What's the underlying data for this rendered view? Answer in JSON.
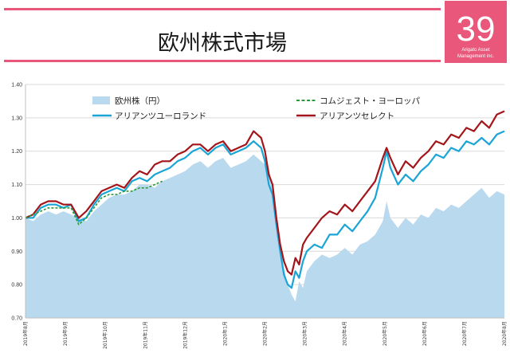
{
  "header": {
    "title": "欧州株式市場",
    "logo_number": "39",
    "logo_line1": "Arigato Asset",
    "logo_line2": "Management inc.",
    "accent_color": "#e9577a"
  },
  "chart_data": {
    "type": "line",
    "ylim": [
      0.7,
      1.4
    ],
    "yticks": [
      "0.70",
      "0.80",
      "0.90",
      "1.00",
      "1.10",
      "1.20",
      "1.30",
      "1.40"
    ],
    "x_tick_labels": [
      "2019年8月",
      "2019年9月",
      "2019年10月",
      "2019年11月",
      "2019年12月",
      "2020年1月",
      "2020年2月",
      "2020年3月",
      "2020年4月",
      "2020年5月",
      "2020年6月",
      "2020年7月",
      "2020年8月"
    ],
    "legend": {
      "area": "欧州株（円）",
      "dashed": "コムジェスト・ヨーロッパ",
      "blue": "アリアンツユーロランド",
      "red": "アリアンツセレクト"
    },
    "colors": {
      "area": "#b9d9ef",
      "dashed": "#2e9b3a",
      "blue": "#1aa5d6",
      "red": "#a4151a",
      "grid": "#d9d9d9"
    },
    "series": [
      {
        "name": "欧州株（円）",
        "style": "area",
        "points": [
          [
            0,
            1.0
          ],
          [
            2,
            0.99
          ],
          [
            4,
            1.01
          ],
          [
            6,
            1.02
          ],
          [
            8,
            1.01
          ],
          [
            10,
            1.02
          ],
          [
            12,
            1.01
          ],
          [
            14,
            1.0
          ],
          [
            16,
            0.99
          ],
          [
            18,
            1.02
          ],
          [
            20,
            1.04
          ],
          [
            22,
            1.06
          ],
          [
            24,
            1.07
          ],
          [
            26,
            1.07
          ],
          [
            28,
            1.08
          ],
          [
            30,
            1.1
          ],
          [
            32,
            1.1
          ],
          [
            34,
            1.09
          ],
          [
            36,
            1.11
          ],
          [
            38,
            1.12
          ],
          [
            40,
            1.13
          ],
          [
            42,
            1.14
          ],
          [
            44,
            1.16
          ],
          [
            46,
            1.17
          ],
          [
            48,
            1.15
          ],
          [
            50,
            1.17
          ],
          [
            52,
            1.18
          ],
          [
            54,
            1.15
          ],
          [
            56,
            1.16
          ],
          [
            58,
            1.17
          ],
          [
            60,
            1.19
          ],
          [
            62,
            1.17
          ],
          [
            64,
            1.15
          ],
          [
            65,
            1.1
          ],
          [
            66,
            1.02
          ],
          [
            67,
            0.93
          ],
          [
            68,
            0.85
          ],
          [
            69,
            0.8
          ],
          [
            70,
            0.77
          ],
          [
            71,
            0.75
          ],
          [
            72,
            0.81
          ],
          [
            73,
            0.79
          ],
          [
            74,
            0.84
          ],
          [
            76,
            0.87
          ],
          [
            78,
            0.89
          ],
          [
            80,
            0.88
          ],
          [
            82,
            0.89
          ],
          [
            84,
            0.91
          ],
          [
            86,
            0.89
          ],
          [
            88,
            0.92
          ],
          [
            90,
            0.93
          ],
          [
            92,
            0.95
          ],
          [
            94,
            0.99
          ],
          [
            95,
            1.05
          ],
          [
            96,
            1.0
          ],
          [
            98,
            0.97
          ],
          [
            100,
            1.0
          ],
          [
            102,
            0.98
          ],
          [
            104,
            1.01
          ],
          [
            106,
            1.0
          ],
          [
            108,
            1.03
          ],
          [
            110,
            1.02
          ],
          [
            112,
            1.04
          ],
          [
            114,
            1.03
          ],
          [
            116,
            1.05
          ],
          [
            118,
            1.07
          ],
          [
            120,
            1.09
          ],
          [
            122,
            1.06
          ],
          [
            124,
            1.08
          ],
          [
            126,
            1.07
          ]
        ]
      },
      {
        "name": "アリアンツユーロランド",
        "style": "line",
        "points": [
          [
            0,
            1.0
          ],
          [
            2,
            1.0
          ],
          [
            4,
            1.03
          ],
          [
            6,
            1.04
          ],
          [
            8,
            1.04
          ],
          [
            10,
            1.03
          ],
          [
            12,
            1.04
          ],
          [
            14,
            0.99
          ],
          [
            16,
            1.0
          ],
          [
            18,
            1.04
          ],
          [
            20,
            1.07
          ],
          [
            22,
            1.08
          ],
          [
            24,
            1.09
          ],
          [
            26,
            1.08
          ],
          [
            28,
            1.11
          ],
          [
            30,
            1.12
          ],
          [
            32,
            1.11
          ],
          [
            34,
            1.13
          ],
          [
            36,
            1.14
          ],
          [
            38,
            1.15
          ],
          [
            40,
            1.17
          ],
          [
            42,
            1.18
          ],
          [
            44,
            1.2
          ],
          [
            46,
            1.21
          ],
          [
            48,
            1.19
          ],
          [
            50,
            1.21
          ],
          [
            52,
            1.22
          ],
          [
            54,
            1.19
          ],
          [
            56,
            1.2
          ],
          [
            58,
            1.21
          ],
          [
            60,
            1.23
          ],
          [
            62,
            1.21
          ],
          [
            63,
            1.17
          ],
          [
            64,
            1.1
          ],
          [
            65,
            1.07
          ],
          [
            66,
            0.98
          ],
          [
            67,
            0.9
          ],
          [
            68,
            0.83
          ],
          [
            69,
            0.8
          ],
          [
            70,
            0.79
          ],
          [
            71,
            0.84
          ],
          [
            72,
            0.82
          ],
          [
            73,
            0.87
          ],
          [
            74,
            0.9
          ],
          [
            76,
            0.92
          ],
          [
            78,
            0.91
          ],
          [
            80,
            0.95
          ],
          [
            82,
            0.95
          ],
          [
            84,
            0.98
          ],
          [
            86,
            0.96
          ],
          [
            88,
            0.99
          ],
          [
            90,
            1.02
          ],
          [
            92,
            1.06
          ],
          [
            94,
            1.15
          ],
          [
            95,
            1.2
          ],
          [
            96,
            1.15
          ],
          [
            98,
            1.1
          ],
          [
            100,
            1.13
          ],
          [
            102,
            1.11
          ],
          [
            104,
            1.14
          ],
          [
            106,
            1.16
          ],
          [
            108,
            1.19
          ],
          [
            110,
            1.18
          ],
          [
            112,
            1.21
          ],
          [
            114,
            1.2
          ],
          [
            116,
            1.23
          ],
          [
            118,
            1.22
          ],
          [
            120,
            1.24
          ],
          [
            122,
            1.22
          ],
          [
            124,
            1.25
          ],
          [
            126,
            1.26
          ]
        ]
      },
      {
        "name": "アリアンツセレクト",
        "style": "line",
        "points": [
          [
            0,
            1.0
          ],
          [
            2,
            1.01
          ],
          [
            4,
            1.04
          ],
          [
            6,
            1.05
          ],
          [
            8,
            1.05
          ],
          [
            10,
            1.04
          ],
          [
            12,
            1.04
          ],
          [
            14,
            1.0
          ],
          [
            16,
            1.02
          ],
          [
            18,
            1.05
          ],
          [
            20,
            1.08
          ],
          [
            22,
            1.09
          ],
          [
            24,
            1.1
          ],
          [
            26,
            1.09
          ],
          [
            28,
            1.12
          ],
          [
            30,
            1.14
          ],
          [
            32,
            1.13
          ],
          [
            34,
            1.16
          ],
          [
            36,
            1.17
          ],
          [
            38,
            1.17
          ],
          [
            40,
            1.19
          ],
          [
            42,
            1.2
          ],
          [
            44,
            1.22
          ],
          [
            46,
            1.22
          ],
          [
            48,
            1.2
          ],
          [
            50,
            1.22
          ],
          [
            52,
            1.23
          ],
          [
            54,
            1.2
          ],
          [
            56,
            1.21
          ],
          [
            58,
            1.22
          ],
          [
            60,
            1.26
          ],
          [
            62,
            1.24
          ],
          [
            63,
            1.2
          ],
          [
            64,
            1.13
          ],
          [
            65,
            1.1
          ],
          [
            66,
            1.0
          ],
          [
            67,
            0.92
          ],
          [
            68,
            0.87
          ],
          [
            69,
            0.84
          ],
          [
            70,
            0.83
          ],
          [
            71,
            0.88
          ],
          [
            72,
            0.86
          ],
          [
            73,
            0.92
          ],
          [
            74,
            0.94
          ],
          [
            76,
            0.97
          ],
          [
            78,
            1.0
          ],
          [
            80,
            1.02
          ],
          [
            82,
            1.01
          ],
          [
            84,
            1.04
          ],
          [
            86,
            1.02
          ],
          [
            88,
            1.05
          ],
          [
            90,
            1.08
          ],
          [
            92,
            1.11
          ],
          [
            94,
            1.18
          ],
          [
            95,
            1.21
          ],
          [
            96,
            1.18
          ],
          [
            98,
            1.13
          ],
          [
            100,
            1.17
          ],
          [
            102,
            1.15
          ],
          [
            104,
            1.18
          ],
          [
            106,
            1.2
          ],
          [
            108,
            1.23
          ],
          [
            110,
            1.22
          ],
          [
            112,
            1.25
          ],
          [
            114,
            1.24
          ],
          [
            116,
            1.27
          ],
          [
            118,
            1.26
          ],
          [
            120,
            1.29
          ],
          [
            122,
            1.27
          ],
          [
            124,
            1.31
          ],
          [
            126,
            1.32
          ]
        ]
      },
      {
        "name": "コムジェスト・ヨーロッパ",
        "style": "dashed",
        "points": [
          [
            0,
            1.0
          ],
          [
            2,
            1.01
          ],
          [
            4,
            1.02
          ],
          [
            6,
            1.03
          ],
          [
            8,
            1.03
          ],
          [
            10,
            1.03
          ],
          [
            12,
            1.03
          ],
          [
            14,
            0.98
          ],
          [
            16,
            1.0
          ],
          [
            18,
            1.03
          ],
          [
            20,
            1.06
          ],
          [
            22,
            1.07
          ],
          [
            24,
            1.07
          ],
          [
            26,
            1.08
          ],
          [
            28,
            1.08
          ],
          [
            30,
            1.09
          ],
          [
            32,
            1.09
          ],
          [
            34,
            1.1
          ],
          [
            36,
            1.11
          ]
        ]
      }
    ]
  }
}
